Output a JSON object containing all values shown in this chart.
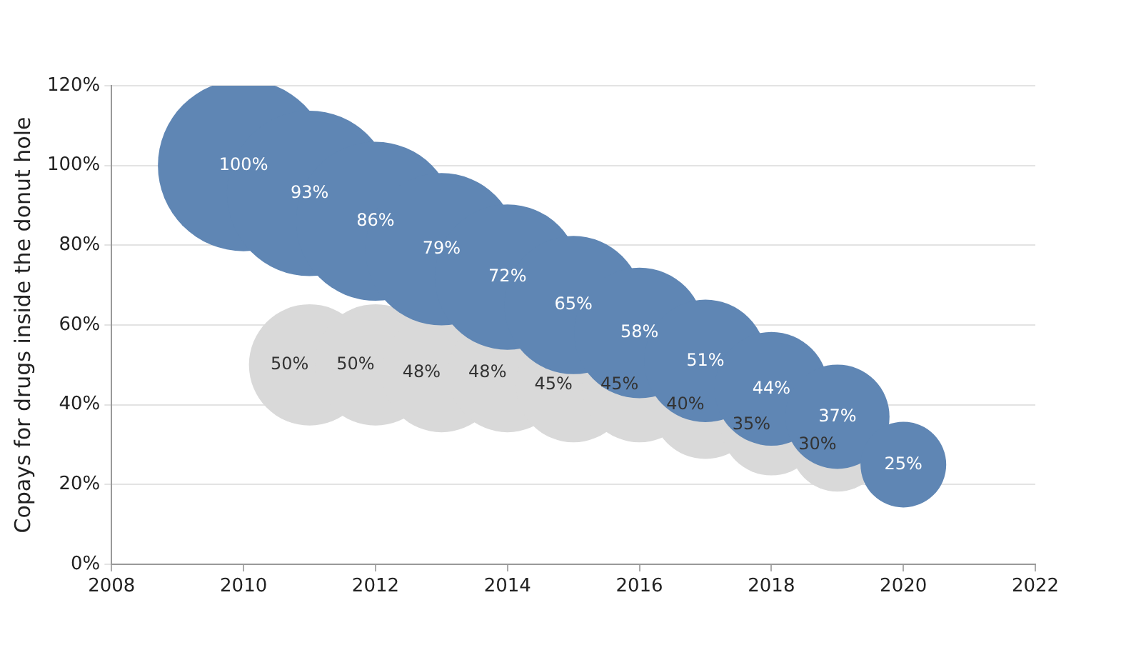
{
  "chart_data": {
    "type": "bubble",
    "ylabel": "Copays for drugs inside the donut hole",
    "xlim": [
      2008,
      2022
    ],
    "xticks": [
      2008,
      2010,
      2012,
      2014,
      2016,
      2018,
      2020,
      2022
    ],
    "ylim": [
      0,
      120
    ],
    "yticks": [
      {
        "value": 0,
        "label": "0%"
      },
      {
        "value": 20,
        "label": "20%"
      },
      {
        "value": 40,
        "label": "40%"
      },
      {
        "value": 60,
        "label": "60%"
      },
      {
        "value": 80,
        "label": "80%"
      },
      {
        "value": 100,
        "label": "100%"
      },
      {
        "value": 120,
        "label": "120%"
      }
    ],
    "grid": "y",
    "legend": false,
    "series": [
      {
        "color": "#d9d9d9",
        "x": [
          2011,
          2012,
          2013,
          2014,
          2015,
          2016,
          2017,
          2018,
          2019
        ],
        "values": [
          50,
          50,
          48,
          48,
          45,
          45,
          40,
          35,
          30
        ],
        "sizes": [
          0.5,
          0.5,
          0.48,
          0.48,
          0.45,
          0.45,
          0.4,
          0.35,
          0.3
        ],
        "value_labels": [
          "50%",
          "50%",
          "48%",
          "48%",
          "45%",
          "45%",
          "40%",
          "35%",
          "30%"
        ]
      },
      {
        "color": "#5f86b4",
        "x": [
          2010,
          2011,
          2012,
          2013,
          2014,
          2015,
          2016,
          2017,
          2018,
          2019,
          2020
        ],
        "values": [
          100,
          93,
          86,
          79,
          72,
          65,
          58,
          51,
          44,
          37,
          25
        ],
        "sizes": [
          1,
          0.93,
          0.86,
          0.79,
          0.72,
          0.65,
          0.58,
          0.51,
          0.44,
          0.37,
          0.25
        ],
        "value_labels": [
          "100%",
          "93%",
          "86%",
          "79%",
          "72%",
          "65%",
          "58%",
          "51%",
          "44%",
          "37%",
          "25%"
        ]
      }
    ]
  }
}
